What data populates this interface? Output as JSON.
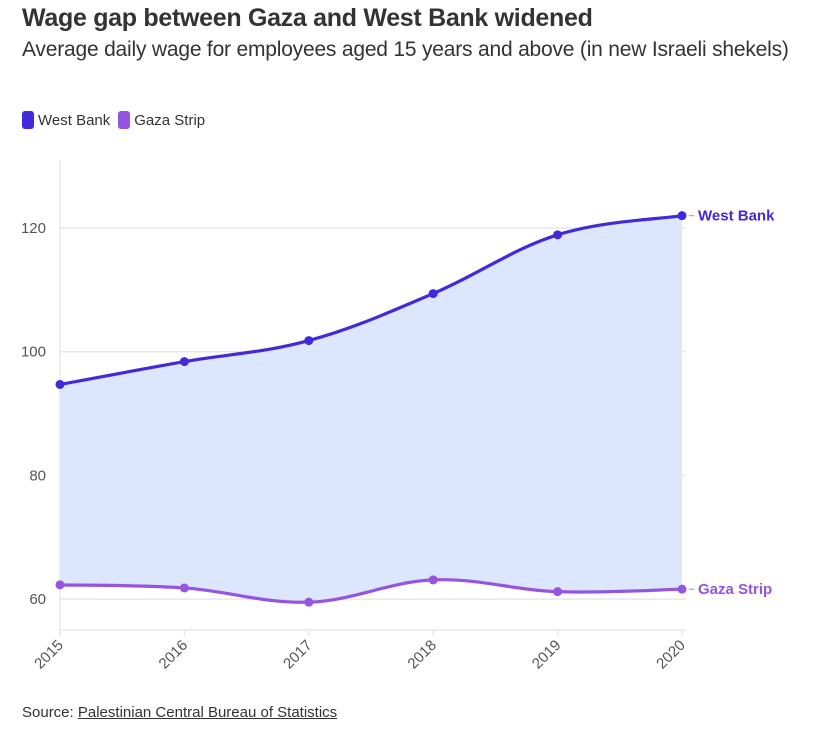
{
  "title": "Wage gap between Gaza and West Bank widened",
  "subtitle": "Average daily wage for employees aged 15 years and above (in new Israeli shekels)",
  "legend": [
    {
      "label": "West Bank",
      "color": "#4329d9"
    },
    {
      "label": "Gaza Strip",
      "color": "#9654e0"
    }
  ],
  "source": {
    "prefix": "Source: ",
    "link_text": "Palestinian Central Bureau of Statistics"
  },
  "colors": {
    "area_fill": "#dce6fc",
    "grid": "#e8e8e8",
    "axis_text": "#555555"
  },
  "chart_data": {
    "type": "line",
    "title": "Wage gap between Gaza and West Bank widened",
    "subtitle": "Average daily wage for employees aged 15 years and above (in new Israeli shekels)",
    "xlabel": "",
    "ylabel": "",
    "x": [
      "2015",
      "2016",
      "2017",
      "2018",
      "2019",
      "2020"
    ],
    "ylim": [
      55,
      131
    ],
    "yticks": [
      60,
      80,
      100,
      120
    ],
    "grid": true,
    "legend_position": "top-left",
    "area_between_series": true,
    "series": [
      {
        "name": "West Bank",
        "color": "#4329d9",
        "end_label": "West Bank",
        "values": [
          94.7,
          98.4,
          101.8,
          109.4,
          118.9,
          122.0
        ]
      },
      {
        "name": "Gaza Strip",
        "color": "#9654e0",
        "end_label": "Gaza Strip",
        "values": [
          62.3,
          61.8,
          59.5,
          63.1,
          61.2,
          61.6
        ]
      }
    ]
  }
}
